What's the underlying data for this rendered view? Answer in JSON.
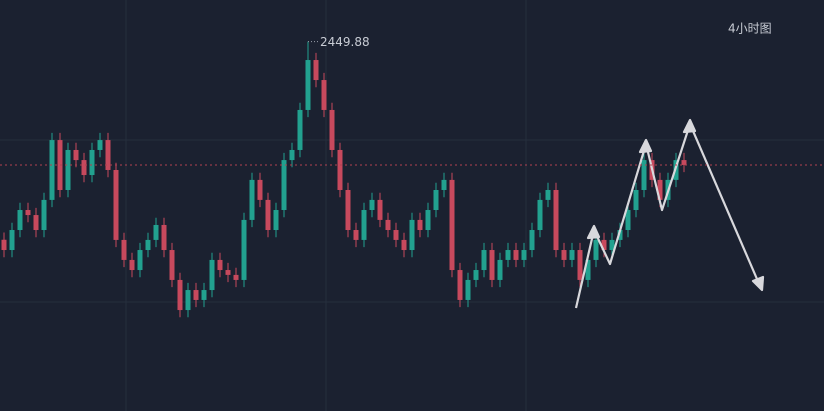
{
  "chart_data": {
    "type": "candlestick",
    "interval": "4小时图",
    "ylim": [
      2245,
      2473
    ],
    "up_color": "#22a18f",
    "down_color": "#c7495d",
    "last_price_line": true,
    "open": [
      2340.0,
      2334.3,
      2345.4,
      2356.5,
      2353.7,
      2345.4,
      2362.1,
      2395.3,
      2367.6,
      2389.8,
      2384.2,
      2375.9,
      2389.8,
      2395.3,
      2378.7,
      2339.9,
      2328.8,
      2323.2,
      2334.3,
      2339.9,
      2348.2,
      2334.3,
      2317.7,
      2301.0,
      2312.1,
      2306.6,
      2312.1,
      2328.8,
      2323.2,
      2320.5,
      2317.7,
      2351.0,
      2373.2,
      2362.1,
      2345.4,
      2356.5,
      2384.2,
      2389.8,
      2412.0,
      2439.7,
      2428.6,
      2412.0,
      2389.8,
      2367.6,
      2345.4,
      2339.9,
      2356.5,
      2362.1,
      2351.0,
      2345.4,
      2339.9,
      2334.3,
      2351.0,
      2345.4,
      2356.5,
      2367.6,
      2373.2,
      2323.2,
      2306.6,
      2317.7,
      2323.2,
      2334.3,
      2317.7,
      2328.8,
      2334.3,
      2328.8,
      2334.3,
      2345.4,
      2362.1,
      2367.6,
      2334.3,
      2328.8,
      2334.3,
      2317.7,
      2328.8,
      2339.9,
      2334.3,
      2339.9,
      2345.4,
      2356.5,
      2367.6,
      2384.2,
      2373.2,
      2362.1,
      2373.2,
      2384.2
    ],
    "high": [
      2344.0,
      2349.4,
      2360.5,
      2360.5,
      2357.7,
      2366.1,
      2399.3,
      2399.3,
      2393.8,
      2393.8,
      2388.2,
      2393.8,
      2399.3,
      2399.3,
      2382.7,
      2343.9,
      2332.8,
      2338.3,
      2343.9,
      2352.2,
      2352.2,
      2338.3,
      2321.7,
      2316.1,
      2316.1,
      2316.1,
      2332.8,
      2332.8,
      2327.2,
      2324.5,
      2355.0,
      2377.2,
      2377.2,
      2366.1,
      2360.5,
      2388.2,
      2393.8,
      2416.0,
      2449.88,
      2443.7,
      2432.6,
      2416.0,
      2393.8,
      2371.6,
      2349.4,
      2360.5,
      2366.1,
      2366.1,
      2355.0,
      2349.4,
      2343.9,
      2355.0,
      2355.0,
      2360.5,
      2371.6,
      2377.2,
      2377.2,
      2327.2,
      2321.7,
      2327.2,
      2338.3,
      2338.3,
      2332.8,
      2338.3,
      2338.3,
      2338.3,
      2349.4,
      2366.1,
      2371.6,
      2371.6,
      2338.3,
      2338.3,
      2338.3,
      2332.8,
      2343.9,
      2343.9,
      2343.9,
      2349.4,
      2360.5,
      2371.6,
      2388.2,
      2388.2,
      2377.2,
      2377.2,
      2388.2,
      2388.2
    ],
    "low": [
      2330.3,
      2330.3,
      2341.4,
      2349.7,
      2341.4,
      2341.4,
      2358.1,
      2363.6,
      2363.6,
      2380.2,
      2371.9,
      2371.9,
      2385.8,
      2374.7,
      2335.9,
      2324.8,
      2319.2,
      2319.2,
      2330.3,
      2335.9,
      2330.3,
      2313.7,
      2297.0,
      2297.0,
      2302.6,
      2302.6,
      2308.1,
      2319.2,
      2316.5,
      2313.7,
      2313.7,
      2347.0,
      2358.1,
      2341.4,
      2341.4,
      2352.5,
      2380.2,
      2385.8,
      2408.0,
      2424.6,
      2408.0,
      2385.8,
      2363.6,
      2341.4,
      2335.9,
      2335.9,
      2352.5,
      2347.0,
      2341.4,
      2335.9,
      2330.3,
      2330.3,
      2341.4,
      2341.4,
      2352.5,
      2363.6,
      2319.2,
      2302.6,
      2302.6,
      2313.7,
      2319.2,
      2313.7,
      2313.7,
      2324.8,
      2324.8,
      2324.8,
      2330.3,
      2341.4,
      2358.1,
      2330.3,
      2324.8,
      2324.8,
      2313.7,
      2313.7,
      2324.8,
      2330.3,
      2330.3,
      2335.9,
      2341.4,
      2352.5,
      2363.6,
      2369.2,
      2358.1,
      2358.1,
      2369.2,
      2377.5
    ],
    "close": [
      2334.3,
      2345.4,
      2356.5,
      2353.7,
      2345.4,
      2362.1,
      2395.3,
      2367.6,
      2389.8,
      2384.2,
      2375.9,
      2389.8,
      2395.3,
      2378.7,
      2339.9,
      2328.8,
      2323.2,
      2334.3,
      2339.9,
      2348.2,
      2334.3,
      2317.7,
      2301.0,
      2312.1,
      2306.6,
      2312.1,
      2328.8,
      2323.2,
      2320.5,
      2317.7,
      2351.0,
      2373.2,
      2362.1,
      2345.4,
      2356.5,
      2384.2,
      2389.8,
      2412.0,
      2439.7,
      2428.6,
      2412.0,
      2389.8,
      2367.6,
      2345.4,
      2339.9,
      2356.5,
      2362.1,
      2351.0,
      2345.4,
      2339.9,
      2334.3,
      2351.0,
      2345.4,
      2356.5,
      2367.6,
      2373.2,
      2323.2,
      2306.6,
      2317.7,
      2323.2,
      2334.3,
      2317.7,
      2328.8,
      2334.3,
      2328.8,
      2334.3,
      2345.4,
      2362.1,
      2367.6,
      2334.3,
      2328.8,
      2334.3,
      2317.7,
      2328.8,
      2339.9,
      2334.3,
      2339.9,
      2345.4,
      2356.5,
      2367.6,
      2384.2,
      2373.2,
      2362.1,
      2373.2,
      2384.2,
      2381.5
    ]
  }
}
